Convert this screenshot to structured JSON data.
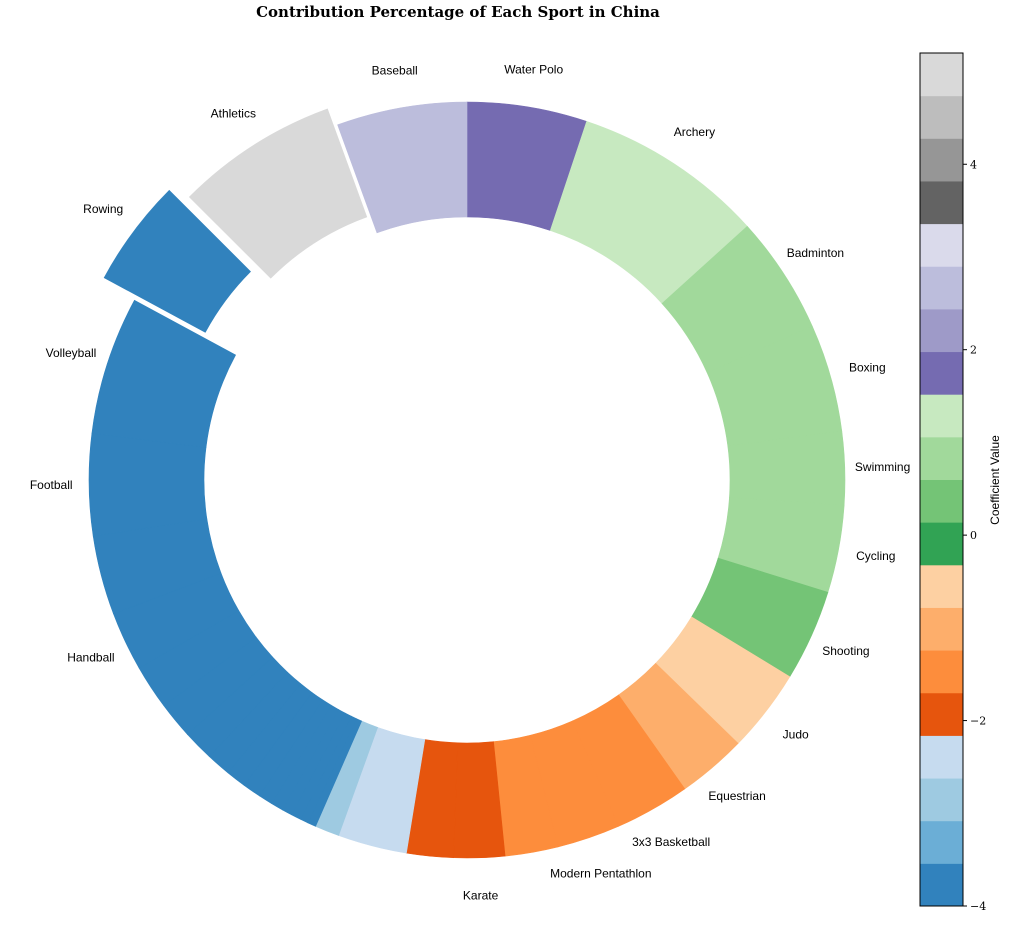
{
  "chart_data": {
    "type": "pie",
    "variant": "donut",
    "title": "Contribution Percentage of Each Sport in China",
    "colorbar": {
      "label": "Coefficient Value",
      "range": [
        -4,
        5.2
      ],
      "ticks": [
        -4,
        -2,
        0,
        2,
        4
      ],
      "tick_labels": [
        "−4",
        "−2",
        "0",
        "2",
        "4"
      ],
      "colors": [
        "#3182bd",
        "#6baed6",
        "#9ecae1",
        "#c6dbef",
        "#e6550d",
        "#fd8d3c",
        "#fdae6b",
        "#fdd0a2",
        "#31a354",
        "#74c476",
        "#a1d99b",
        "#c7e9c0",
        "#756bb1",
        "#9e9ac8",
        "#bcbddc",
        "#dadaeb",
        "#636363",
        "#969696",
        "#bdbdbd",
        "#d9d9d9"
      ]
    },
    "slices": [
      {
        "name": "Water Polo",
        "label": "Water Polo",
        "value": 5.9,
        "color": "#756bb1",
        "explode": 0
      },
      {
        "name": "Archery",
        "label": "Archery",
        "value": 9.4,
        "color": "#c7e9c0",
        "explode": 0
      },
      {
        "name": "Badminton",
        "label": "Badminton",
        "value": 5.8,
        "color": "#a1d99b",
        "explode": 0
      },
      {
        "name": "Boxing",
        "label": "Boxing",
        "value": 5.3,
        "color": "#a1d99b",
        "explode": 0
      },
      {
        "name": "Swimming",
        "label": "Swimming",
        "value": 3.6,
        "color": "#a1d99b",
        "explode": 0
      },
      {
        "name": "Cycling",
        "label": "Cycling",
        "value": 4.3,
        "color": "#a1d99b",
        "explode": 0
      },
      {
        "name": "Shooting",
        "label": "Shooting",
        "value": 4.5,
        "color": "#74c476",
        "explode": 0
      },
      {
        "name": "Judo",
        "label": "Judo",
        "value": 4.1,
        "color": "#fdd0a2",
        "explode": 0
      },
      {
        "name": "Equestrian",
        "label": "Equestrian",
        "value": 3.4,
        "color": "#fdae6b",
        "explode": 0
      },
      {
        "name": "3x3 Basketball",
        "label": "3x3 Basketball",
        "value": 3.7,
        "color": "#fd8d3c",
        "explode": 0
      },
      {
        "name": "Modern Pentathlon",
        "label": "Modern Pentathlon",
        "value": 3.1,
        "color": "#fd8d3c",
        "explode": 0
      },
      {
        "name": "Karate",
        "label": "",
        "value": 2.6,
        "color": "#fd8d3c",
        "explode": 0
      },
      {
        "name": "Karate-2",
        "label": "Karate",
        "value": 2.5,
        "color": "#e6550d",
        "explode": 0
      },
      {
        "name": "e1",
        "label": "",
        "value": 2.3,
        "color": "#e6550d",
        "explode": 0
      },
      {
        "name": "e2",
        "label": "",
        "value": 3.4,
        "color": "#c6dbef",
        "explode": 0
      },
      {
        "name": "e3",
        "label": "",
        "value": 1.2,
        "color": "#9ecae1",
        "explode": 0
      },
      {
        "name": "e4",
        "label": "",
        "value": 0.4,
        "color": "#3182bd",
        "explode": 0
      },
      {
        "name": "e5",
        "label": "",
        "value": 0.4,
        "color": "#3182bd",
        "explode": 0
      },
      {
        "name": "e6",
        "label": "",
        "value": 0.5,
        "color": "#3182bd",
        "explode": 0
      },
      {
        "name": "e7",
        "label": "",
        "value": 0.5,
        "color": "#3182bd",
        "explode": 0
      },
      {
        "name": "e8",
        "label": "",
        "value": 0.6,
        "color": "#3182bd",
        "explode": 0
      },
      {
        "name": "e9",
        "label": "",
        "value": 0.7,
        "color": "#3182bd",
        "explode": 0
      },
      {
        "name": "e10",
        "label": "",
        "value": 0.9,
        "color": "#3182bd",
        "explode": 0
      },
      {
        "name": "e11",
        "label": "",
        "value": 1.0,
        "color": "#3182bd",
        "explode": 0
      },
      {
        "name": "e12",
        "label": "",
        "value": 1.2,
        "color": "#3182bd",
        "explode": 0
      },
      {
        "name": "e13",
        "label": "",
        "value": 1.5,
        "color": "#3182bd",
        "explode": 0
      },
      {
        "name": "e14",
        "label": "",
        "value": 1.8,
        "color": "#3182bd",
        "explode": 0
      },
      {
        "name": "e15",
        "label": "",
        "value": 2.2,
        "color": "#3182bd",
        "explode": 0
      },
      {
        "name": "Handball",
        "label": "Handball",
        "value": 2.9,
        "color": "#3182bd",
        "explode": 0
      },
      {
        "name": "Handball-2",
        "label": "",
        "value": 3.9,
        "color": "#3182bd",
        "explode": 0
      },
      {
        "name": "Football",
        "label": "Football",
        "value": 5.0,
        "color": "#3182bd",
        "explode": 0
      },
      {
        "name": "Volleyball",
        "label": "Volleyball",
        "value": 6.8,
        "color": "#3182bd",
        "explode": 0
      },
      {
        "name": "Rowing",
        "label": "Rowing",
        "value": 5.3,
        "color": "#3182bd",
        "explode": 0.1
      },
      {
        "name": "Athletics",
        "label": "Athletics",
        "value": 8.0,
        "color": "#d9d9d9",
        "explode": 0.05
      },
      {
        "name": "Baseball",
        "label": "Baseball",
        "value": 6.4,
        "color": "#bcbddc",
        "explode": 0
      }
    ]
  }
}
